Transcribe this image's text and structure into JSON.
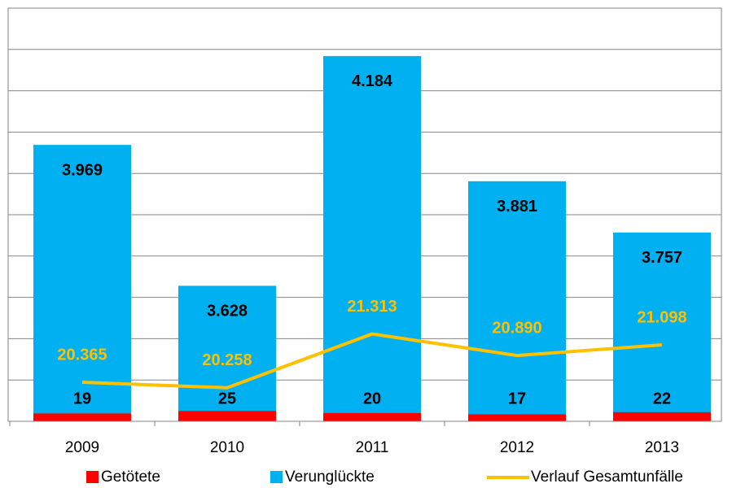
{
  "chart_data": {
    "type": "bar",
    "categories": [
      "2009",
      "2010",
      "2011",
      "2012",
      "2013"
    ],
    "ylim": [
      3300,
      4300
    ],
    "yticks": [
      3300,
      3400,
      3500,
      3600,
      3700,
      3800,
      3900,
      4000,
      4100,
      4200,
      4300
    ],
    "y2lim": [
      19600,
      27700
    ],
    "y3lim": [
      0,
      1000
    ],
    "grid": true,
    "series": [
      {
        "name": "Getötete",
        "color": "#ff0000",
        "axis": "y3",
        "values": [
          19,
          25,
          20,
          17,
          22
        ]
      },
      {
        "name": "Verunglückte",
        "color": "#00b0f0",
        "values": [
          3969,
          3628,
          4184,
          3881,
          3757
        ],
        "value_labels": [
          "3.969",
          "3.628",
          "4.184",
          "3.881",
          "3.757"
        ]
      },
      {
        "name": "Verlauf Gesamtunfälle",
        "color": "#ffc000",
        "axis": "y2",
        "type": "line",
        "values": [
          20365,
          20258,
          21313,
          20890,
          21098
        ],
        "value_labels": [
          "20.365",
          "20.258",
          "21.313",
          "20.890",
          "21.098"
        ]
      }
    ]
  }
}
